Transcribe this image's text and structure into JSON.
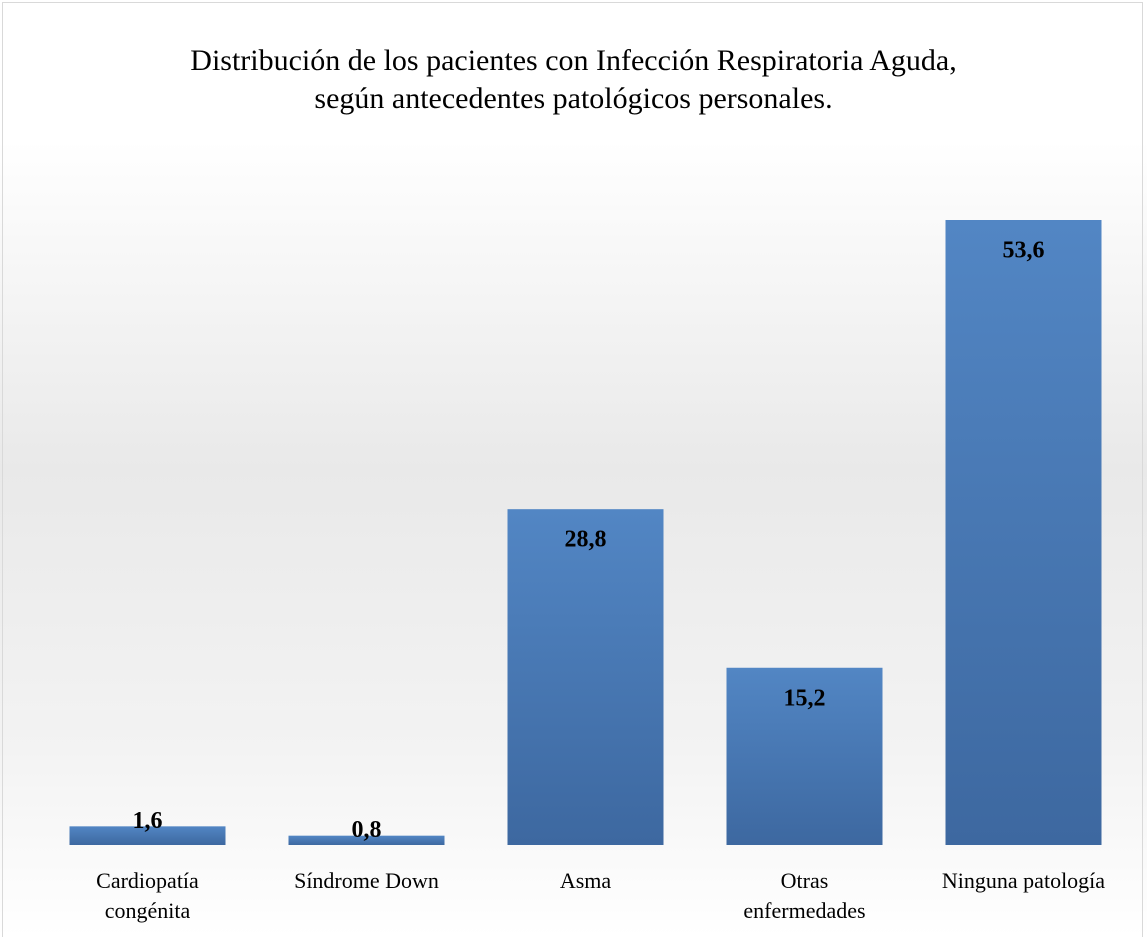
{
  "chart_data": {
    "type": "bar",
    "title": "Distribución de los pacientes con Infección Respiratoria Aguda,\nsegún antecedentes patológicos personales.",
    "categories": [
      "Cardiopatía\ncongénita",
      "Síndrome Down",
      "Asma",
      "Otras\nenfermedades",
      "Ninguna patología"
    ],
    "values": [
      1.6,
      0.8,
      28.8,
      15.2,
      53.6
    ],
    "value_labels": [
      "1,6",
      "0,8",
      "28,8",
      "15,2",
      "53,6"
    ],
    "color": "#4a7ebb"
  }
}
